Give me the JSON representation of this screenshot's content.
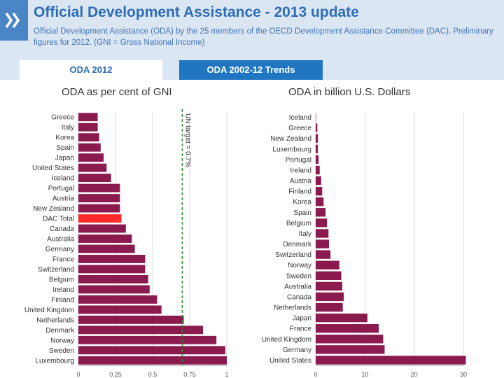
{
  "header": {
    "title": "Official Development Assistance - 2013 update",
    "subtitle": "Official Development Assistance (ODA) by the 25 members of the OECD Development Assistance Committee (DAC). Preliminary figures for 2012. (GNI = Gross National Income)"
  },
  "tabs": [
    {
      "label": "ODA 2012",
      "active": true
    },
    {
      "label": "ODA 2002-12 Trends",
      "active": false
    }
  ],
  "colors": {
    "bar": "#8b1a4f",
    "highlight": "#ff2a2a",
    "target_line": "#2e8b2e",
    "grid": "#dddddd"
  },
  "chart_data": [
    {
      "type": "bar",
      "orientation": "horizontal",
      "title": "ODA as per cent of GNI",
      "categories": [
        "Greece",
        "Italy",
        "Korea",
        "Spain",
        "Japan",
        "United States",
        "Iceland",
        "Portugal",
        "Austria",
        "New Zealand",
        "DAC Total",
        "Canada",
        "Australia",
        "Germany",
        "France",
        "Switzerland",
        "Belgium",
        "Ireland",
        "Finland",
        "United Kingdom",
        "Netherlands",
        "Denmark",
        "Norway",
        "Sweden",
        "Luxembourg"
      ],
      "values": [
        0.13,
        0.13,
        0.14,
        0.15,
        0.17,
        0.19,
        0.22,
        0.28,
        0.28,
        0.28,
        0.29,
        0.32,
        0.36,
        0.38,
        0.45,
        0.45,
        0.47,
        0.48,
        0.53,
        0.56,
        0.71,
        0.84,
        0.93,
        0.99,
        1.0
      ],
      "highlight": "DAC Total",
      "xlim": [
        0,
        1
      ],
      "ticks": [
        "0",
        "0.25",
        "0.5",
        "0.75",
        "1"
      ],
      "tick_values": [
        0,
        0.25,
        0.5,
        0.75,
        1
      ],
      "annotation": {
        "label": "UN target = 0.7%",
        "value": 0.7
      },
      "grid": true
    },
    {
      "type": "bar",
      "orientation": "horizontal",
      "title": "ODA in billion U.S. Dollars",
      "categories": [
        "Iceland",
        "Greece",
        "New Zealand",
        "Luxembourg",
        "Portugal",
        "Ireland",
        "Austria",
        "Finland",
        "Korea",
        "Spain",
        "Belgium",
        "Italy",
        "Denmark",
        "Switzerland",
        "Norway",
        "Sweden",
        "Australia",
        "Canada",
        "Netherlands",
        "Japan",
        "France",
        "United Kingdom",
        "Germany",
        "United States"
      ],
      "values": [
        0.03,
        0.33,
        0.45,
        0.43,
        0.58,
        0.81,
        1.11,
        1.32,
        1.6,
        2.0,
        2.3,
        2.6,
        2.7,
        3.0,
        4.8,
        5.2,
        5.4,
        5.7,
        5.5,
        10.5,
        12.8,
        13.7,
        14.0,
        30.5
      ],
      "xlim": [
        0,
        30
      ],
      "ticks": [
        "0",
        "10",
        "20",
        "30"
      ],
      "tick_values": [
        0,
        10,
        20,
        30
      ],
      "grid": true
    }
  ]
}
